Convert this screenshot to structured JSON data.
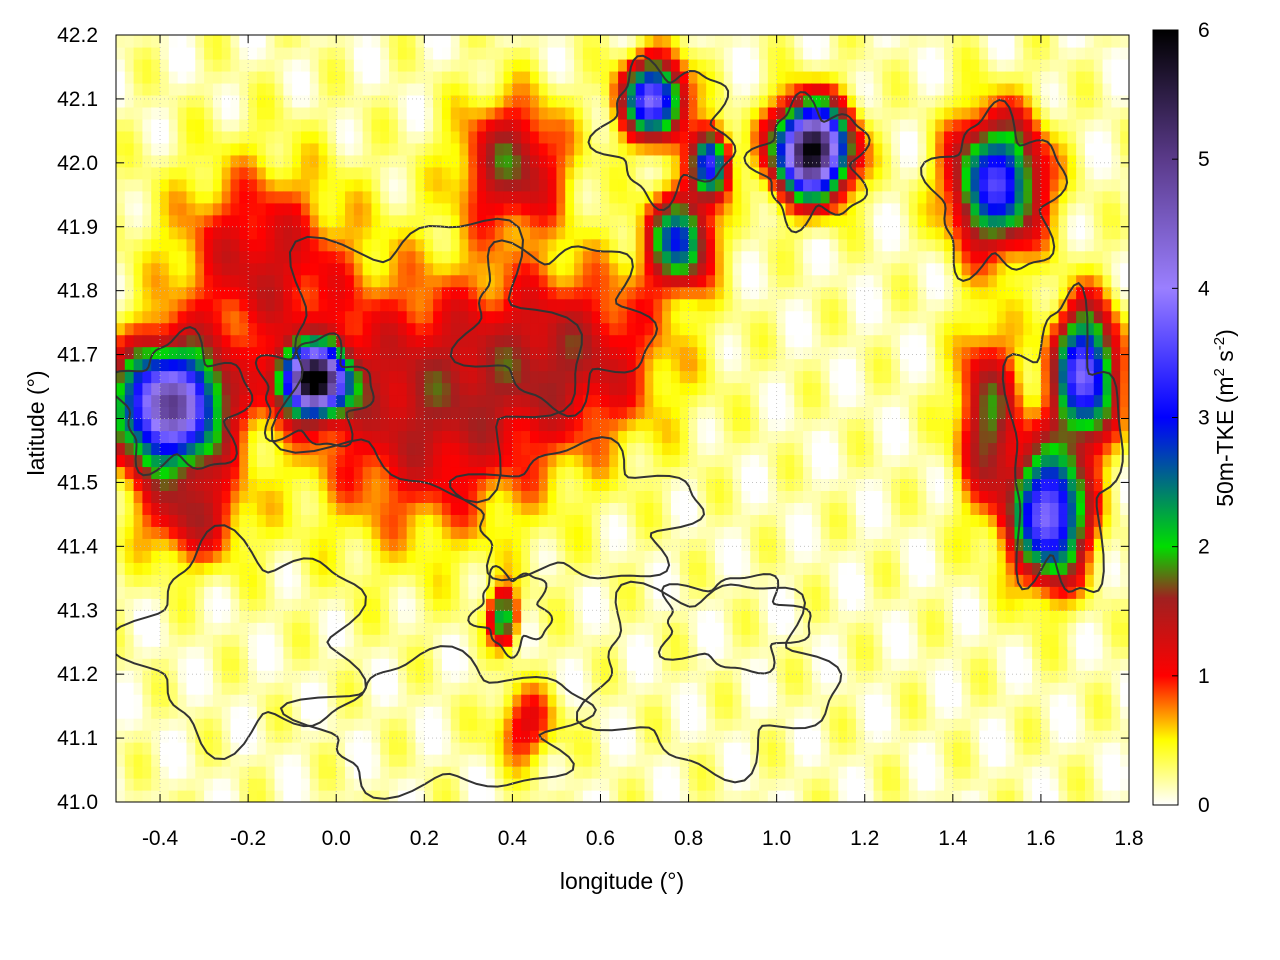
{
  "chart_data": {
    "type": "heatmap",
    "xlabel": "longitude (°)",
    "ylabel": "latitude (°)",
    "xlim": [
      -0.5,
      1.8
    ],
    "ylim": [
      41.0,
      42.2
    ],
    "x_ticks": [
      "-0.4",
      "-0.2",
      "0.0",
      "0.2",
      "0.4",
      "0.6",
      "0.8",
      "1.0",
      "1.2",
      "1.4",
      "1.6",
      "1.8"
    ],
    "x_tick_values": [
      -0.4,
      -0.2,
      0.0,
      0.2,
      0.4,
      0.6,
      0.8,
      1.0,
      1.2,
      1.4,
      1.6,
      1.8
    ],
    "y_ticks": [
      "41.0",
      "41.1",
      "41.2",
      "41.3",
      "41.4",
      "41.5",
      "41.6",
      "41.7",
      "41.8",
      "41.9",
      "42.0",
      "42.1",
      "42.2"
    ],
    "y_tick_values": [
      41.0,
      41.1,
      41.2,
      41.3,
      41.4,
      41.5,
      41.6,
      41.7,
      41.8,
      41.9,
      42.0,
      42.1,
      42.2
    ],
    "colorbar": {
      "label": "50m-TKE (m² s⁻²)",
      "label_main": "50m-TKE (m",
      "label_sup1": "2",
      "label_mid": " s",
      "label_sup2": "-2",
      "label_end": ")",
      "range": [
        0,
        6
      ],
      "ticks": [
        "0",
        "1",
        "2",
        "3",
        "4",
        "5",
        "6"
      ],
      "tick_values": [
        0,
        1,
        2,
        3,
        4,
        5,
        6
      ],
      "stops": [
        {
          "v": 0.0,
          "color": "#ffffff"
        },
        {
          "v": 0.5,
          "color": "#ffff00"
        },
        {
          "v": 1.0,
          "color": "#ff0000"
        },
        {
          "v": 1.6,
          "color": "#a02020"
        },
        {
          "v": 2.0,
          "color": "#00dd00"
        },
        {
          "v": 3.0,
          "color": "#0000ff"
        },
        {
          "v": 4.0,
          "color": "#9a7fff"
        },
        {
          "v": 5.0,
          "color": "#5a3a8a"
        },
        {
          "v": 6.0,
          "color": "#000000"
        }
      ]
    },
    "grid": "dotted",
    "field_features": [
      {
        "lon": -0.38,
        "lat": 41.62,
        "peak": 4.6,
        "sx": 0.12,
        "sy": 0.09
      },
      {
        "lon": -0.05,
        "lat": 41.66,
        "peak": 5.6,
        "sx": 0.07,
        "sy": 0.05
      },
      {
        "lon": 0.2,
        "lat": 41.62,
        "peak": 1.3,
        "sx": 0.28,
        "sy": 0.2
      },
      {
        "lon": -0.18,
        "lat": 41.85,
        "peak": 1.1,
        "sx": 0.2,
        "sy": 0.15
      },
      {
        "lon": 0.55,
        "lat": 41.7,
        "peak": 1.1,
        "sx": 0.22,
        "sy": 0.14
      },
      {
        "lon": 0.4,
        "lat": 42.0,
        "peak": 1.5,
        "sx": 0.12,
        "sy": 0.1
      },
      {
        "lon": 0.72,
        "lat": 42.1,
        "peak": 3.6,
        "sx": 0.07,
        "sy": 0.06
      },
      {
        "lon": 0.78,
        "lat": 41.88,
        "peak": 2.6,
        "sx": 0.07,
        "sy": 0.07
      },
      {
        "lon": 0.85,
        "lat": 42.0,
        "peak": 3.2,
        "sx": 0.04,
        "sy": 0.05
      },
      {
        "lon": 1.08,
        "lat": 42.02,
        "peak": 5.9,
        "sx": 0.08,
        "sy": 0.07
      },
      {
        "lon": 1.5,
        "lat": 41.97,
        "peak": 3.2,
        "sx": 0.1,
        "sy": 0.1
      },
      {
        "lon": 1.7,
        "lat": 41.67,
        "peak": 3.6,
        "sx": 0.07,
        "sy": 0.1
      },
      {
        "lon": 1.62,
        "lat": 41.45,
        "peak": 3.8,
        "sx": 0.08,
        "sy": 0.1
      },
      {
        "lon": 1.48,
        "lat": 41.6,
        "peak": 1.6,
        "sx": 0.07,
        "sy": 0.14
      },
      {
        "lon": 0.38,
        "lat": 41.29,
        "peak": 2.2,
        "sx": 0.03,
        "sy": 0.04
      },
      {
        "lon": 0.43,
        "lat": 41.12,
        "peak": 1.0,
        "sx": 0.07,
        "sy": 0.06
      },
      {
        "lon": -0.33,
        "lat": 41.45,
        "peak": 1.2,
        "sx": 0.12,
        "sy": 0.08
      }
    ]
  }
}
